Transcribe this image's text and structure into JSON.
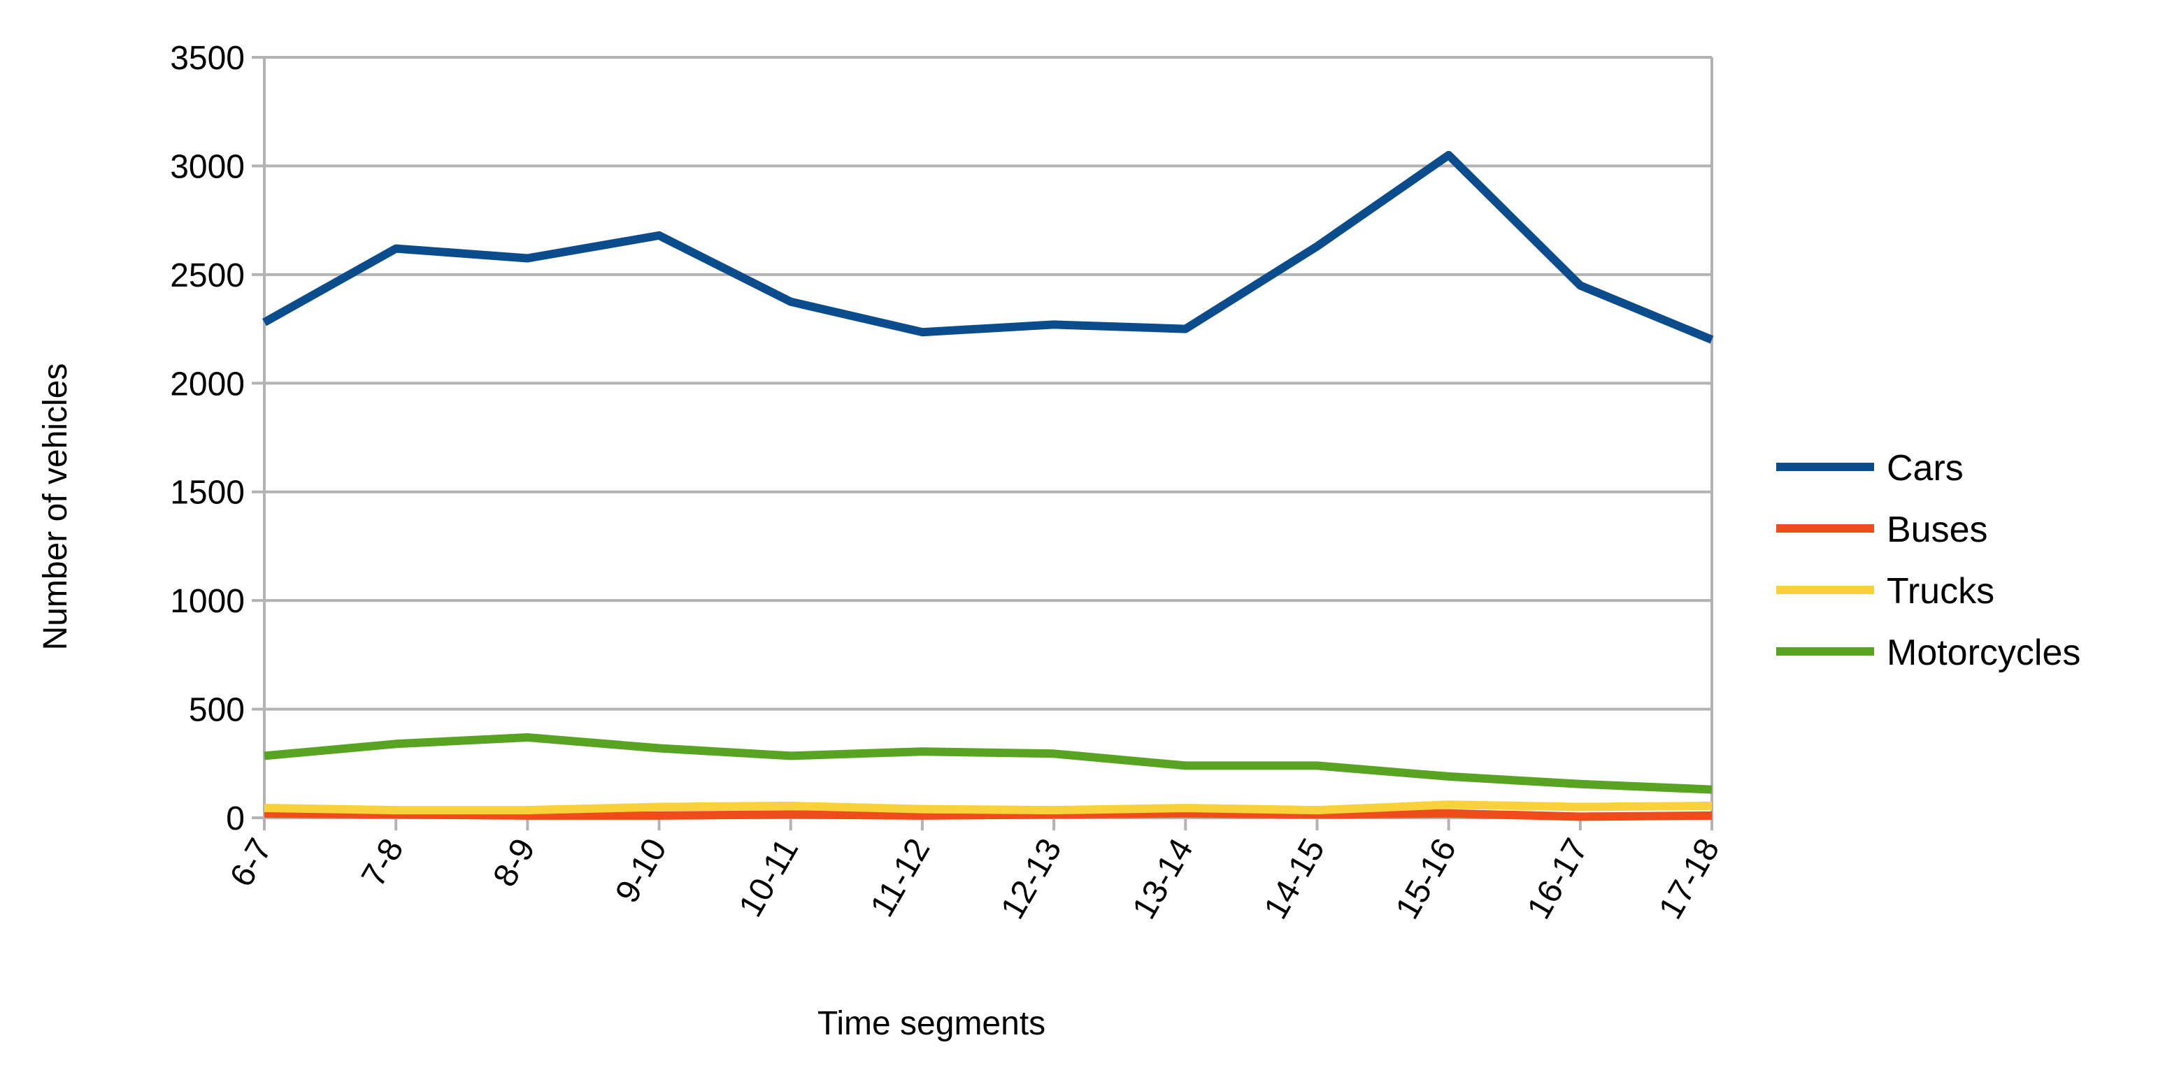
{
  "chart_data": {
    "type": "line",
    "xlabel": "Time segments",
    "ylabel": "Number of vehicles",
    "categories": [
      "6-7",
      "7-8",
      "8-9",
      "9-10",
      "10-11",
      "11-12",
      "12-13",
      "13-14",
      "14-15",
      "15-16",
      "16-17",
      "17-18"
    ],
    "ylim": [
      0,
      3500
    ],
    "yticks": [
      0,
      500,
      1000,
      1500,
      2000,
      2500,
      3000,
      3500
    ],
    "grid": true,
    "legend_position": "right",
    "series": [
      {
        "name": "Cars",
        "color": "#0b4d8c",
        "values": [
          2280,
          2620,
          2575,
          2680,
          2375,
          2235,
          2270,
          2250,
          2630,
          3050,
          2450,
          2200
        ]
      },
      {
        "name": "Buses",
        "color": "#ee4c1b",
        "values": [
          20,
          15,
          10,
          10,
          15,
          10,
          15,
          20,
          15,
          20,
          5,
          10
        ]
      },
      {
        "name": "Trucks",
        "color": "#f9d13a",
        "values": [
          45,
          35,
          35,
          50,
          55,
          40,
          35,
          45,
          35,
          60,
          50,
          55
        ]
      },
      {
        "name": "Motorcycles",
        "color": "#58a322",
        "values": [
          285,
          340,
          370,
          320,
          285,
          305,
          295,
          240,
          240,
          190,
          155,
          130
        ]
      }
    ]
  }
}
